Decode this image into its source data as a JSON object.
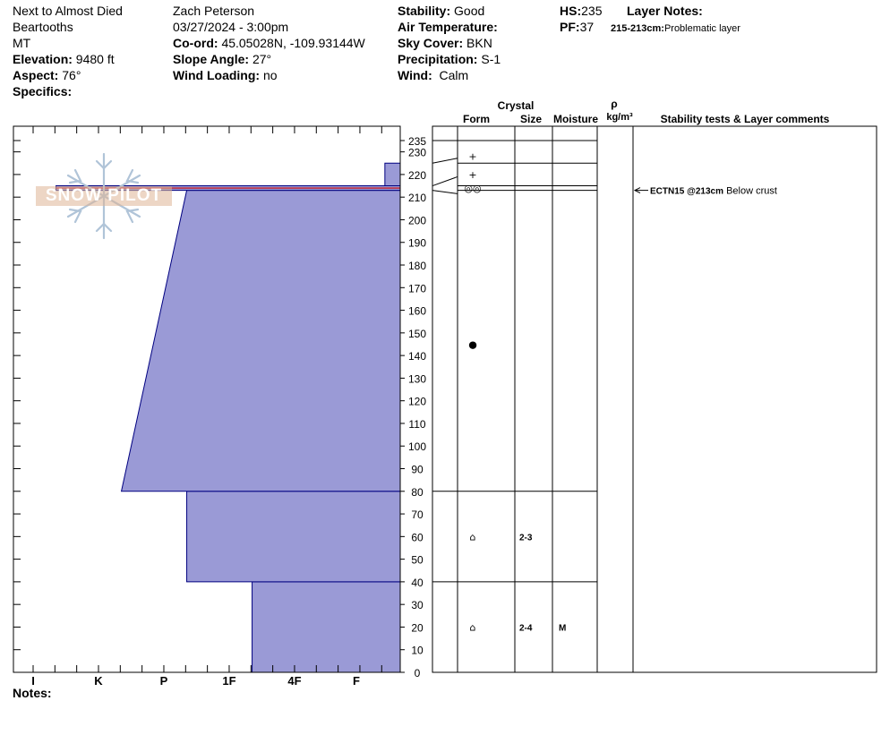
{
  "header": {
    "col1": {
      "location": "Next to Almost Died",
      "range": "Beartooths",
      "state": "MT",
      "elevation_label": "Elevation:",
      "elevation": "9480 ft",
      "aspect_label": "Aspect:",
      "aspect": "76°",
      "specifics_label": "Specifics:"
    },
    "col2": {
      "observer": "Zach Peterson",
      "datetime": "03/27/2024 - 3:00pm",
      "coord_label": "Co-ord:",
      "coord": "45.05028N, -109.93144W",
      "slope_label": "Slope Angle:",
      "slope": "27°",
      "wind_loading_label": "Wind Loading:",
      "wind_loading": "no"
    },
    "col3": {
      "stability_label": "Stability:",
      "stability": "Good",
      "air_temp_label": "Air Temperature:",
      "sky_label": "Sky Cover:",
      "sky": "BKN",
      "precip_label": "Precipitation:",
      "precip": "S-1",
      "wind_label": "Wind:",
      "wind": "Calm"
    },
    "col4": {
      "hs_label": "HS:",
      "hs": "235",
      "pf_label": "PF:",
      "pf": "37",
      "layer_notes_label": "Layer Notes:",
      "layer_note_range": "215-213cm:",
      "layer_note_text": "Problematic layer"
    }
  },
  "notes_label": "Notes:",
  "logo_text": "SNOW PILOT",
  "table_headers": {
    "crystal": "Crystal",
    "form": "Form",
    "size": "Size",
    "moisture": "Moisture",
    "rho": "ρ",
    "density_unit": "kg/m³",
    "stability_comments": "Stability tests & Layer comments"
  },
  "colors": {
    "fill": "#9a9ad6",
    "stroke": "#000080",
    "crust_line": "#cc0000"
  },
  "chart_data": {
    "type": "hardness-profile",
    "hardness_ticks": [
      "I",
      "K",
      "P",
      "1F",
      "4F",
      "F"
    ],
    "height_ticks": [
      0,
      10,
      20,
      30,
      40,
      50,
      60,
      70,
      80,
      90,
      100,
      110,
      120,
      130,
      140,
      150,
      160,
      170,
      180,
      190,
      200,
      210,
      220,
      230,
      235
    ],
    "ylim": [
      0,
      235
    ],
    "layers": [
      {
        "bottom": 0,
        "top": 40,
        "hardness_bottom": 3.35,
        "hardness_top": 3.35
      },
      {
        "bottom": 40,
        "top": 80,
        "hardness_bottom": 2.35,
        "hardness_top": 2.35
      },
      {
        "bottom": 80,
        "top": 213,
        "hardness_bottom": 1.35,
        "hardness_top": 2.35
      },
      {
        "bottom": 213,
        "top": 215,
        "hardness_bottom": 0.35,
        "hardness_top": 0.35
      },
      {
        "bottom": 215,
        "top": 225,
        "hardness_bottom": 5.65,
        "hardness_top": 5.65
      },
      {
        "bottom": 225,
        "top": 235,
        "hardness_bottom": 6.0,
        "hardness_top": 6.0
      }
    ],
    "layer_rows": [
      {
        "bottom": 0,
        "top": 40,
        "form_mark": 20,
        "form": "⌂",
        "size": "2-4",
        "moisture": "M"
      },
      {
        "bottom": 40,
        "top": 80,
        "form_mark": 60,
        "form": "⌂",
        "size": "2-3",
        "moisture": ""
      },
      {
        "bottom": 80,
        "top": 213,
        "form_mark": 145,
        "form": "●",
        "size": "",
        "moisture": ""
      },
      {
        "bottom": 213,
        "top": 215,
        "form_mark": 214,
        "form": "◎◎",
        "size": "",
        "moisture": ""
      },
      {
        "bottom": 215,
        "top": 225,
        "form_mark": 220,
        "form": "+",
        "size": "",
        "moisture": ""
      },
      {
        "bottom": 225,
        "top": 235,
        "form_mark": 228,
        "form": "+",
        "size": "",
        "moisture": ""
      }
    ],
    "stability_tests": [
      {
        "height": 213,
        "result": "ECTN15 @213cm",
        "comment": "Below crust"
      }
    ]
  }
}
